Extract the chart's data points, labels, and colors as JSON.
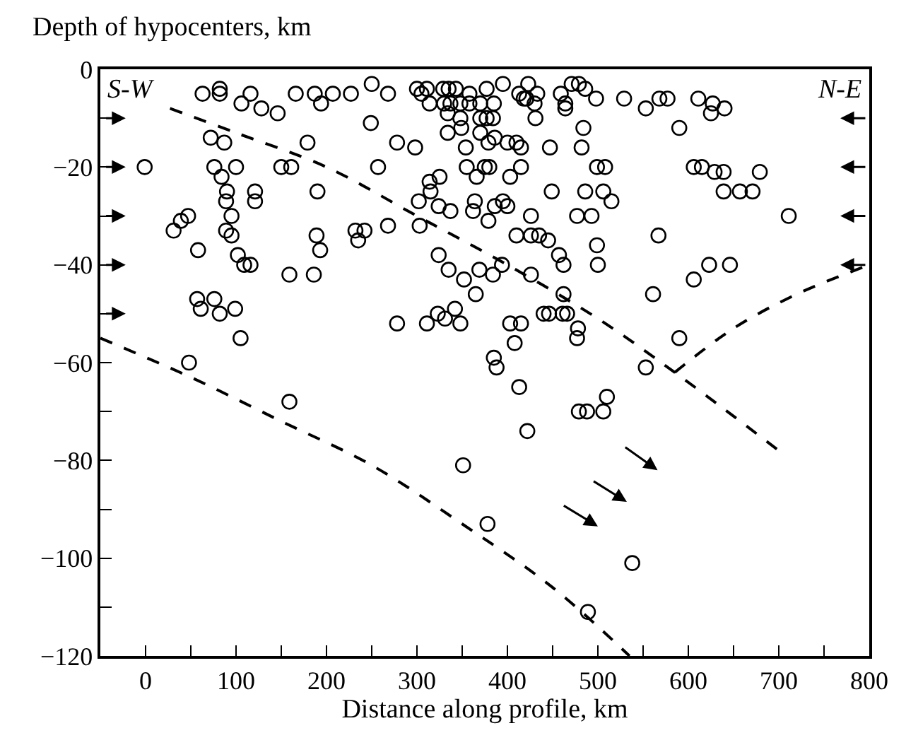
{
  "chart_data": {
    "type": "scatter",
    "xlabel": "Distance along profile, km",
    "ylabel": "Depth of hypocenters, km",
    "annotations": [
      "S-W",
      "N-E"
    ],
    "xlim": [
      -50,
      800
    ],
    "xticks": [
      {
        "value": -50,
        "label": null
      },
      0,
      {
        "value": 50,
        "label": null
      },
      100,
      {
        "value": 150,
        "label": null
      },
      200,
      {
        "value": 250,
        "label": null
      },
      300,
      {
        "value": 350,
        "label": null
      },
      400,
      {
        "value": 450,
        "label": null
      },
      500,
      {
        "value": 550,
        "label": null
      },
      600,
      {
        "value": 650,
        "label": null
      },
      700,
      {
        "value": 750,
        "label": null
      },
      800
    ],
    "ylim": [
      -120,
      0
    ],
    "yticks": [
      -120,
      {
        "value": -110,
        "label": null
      },
      -100,
      {
        "value": -90,
        "label": null
      },
      -80,
      {
        "value": -70,
        "label": null
      },
      -60,
      {
        "value": -50,
        "label": null
      },
      -40,
      {
        "value": -30,
        "label": null
      },
      -20,
      {
        "value": -10,
        "label": null
      },
      0
    ],
    "series": [
      {
        "color": "#000000",
        "marker": "circle",
        "x": [
          63,
          82,
          82,
          106,
          116,
          128,
          146,
          166,
          187,
          194,
          207,
          227,
          250,
          268,
          300,
          305,
          311,
          249,
          278,
          298,
          72,
          87,
          -1,
          76,
          84,
          100,
          150,
          161,
          179,
          257,
          190,
          90,
          121,
          121,
          89,
          47,
          39,
          31,
          95,
          89,
          95,
          58,
          102,
          109,
          116,
          159,
          186,
          189,
          193,
          232,
          242,
          235,
          268,
          302,
          303,
          57,
          61,
          76,
          82,
          99,
          105,
          278,
          311,
          48,
          159,
          329,
          335,
          343,
          358,
          377,
          395,
          413,
          423,
          433,
          459,
          471,
          479,
          486,
          498,
          529,
          553,
          568,
          577,
          611,
          627,
          625,
          640,
          314,
          330,
          337,
          348,
          358,
          370,
          385,
          418,
          421,
          430,
          464,
          464,
          334,
          348,
          370,
          377,
          384,
          431,
          484,
          590,
          334,
          349,
          370,
          379,
          386,
          400,
          410,
          415,
          354,
          447,
          482,
          355,
          366,
          375,
          380,
          415,
          403,
          499,
          508,
          606,
          615,
          629,
          639,
          679,
          325,
          314,
          315,
          449,
          486,
          506,
          515,
          639,
          657,
          671,
          324,
          337,
          364,
          362,
          386,
          395,
          400,
          379,
          426,
          477,
          493,
          711,
          410,
          426,
          435,
          445,
          457,
          462,
          499,
          500,
          567,
          324,
          335,
          352,
          365,
          369,
          384,
          394,
          426,
          462,
          561,
          606,
          623,
          646,
          323,
          331,
          342,
          348,
          403,
          415,
          440,
          446,
          461,
          466,
          478,
          477,
          408,
          590,
          385,
          388,
          553,
          413,
          510,
          479,
          488,
          506,
          422,
          351,
          378,
          538,
          489
        ],
        "values": [
          -5,
          -4,
          -5,
          -7,
          -5,
          -8,
          -9,
          -5,
          -5,
          -7,
          -5,
          -5,
          -3,
          -5,
          -4,
          -5,
          -4,
          -11,
          -15,
          -16,
          -14,
          -15,
          -20,
          -20,
          -22,
          -20,
          -20,
          -20,
          -15,
          -20,
          -25,
          -25,
          -25,
          -27,
          -27,
          -30,
          -31,
          -33,
          -30,
          -33,
          -34,
          -37,
          -38,
          -40,
          -40,
          -42,
          -42,
          -34,
          -37,
          -33,
          -33,
          -35,
          -32,
          -27,
          -32,
          -47,
          -49,
          -47,
          -50,
          -49,
          -55,
          -52,
          -52,
          -60,
          -68,
          -4,
          -4,
          -4,
          -5,
          -4,
          -3,
          -5,
          -3,
          -5,
          -5,
          -3,
          -3,
          -4,
          -6,
          -6,
          -8,
          -6,
          -6,
          -6,
          -7,
          -9,
          -8,
          -7,
          -7,
          -7,
          -7,
          -7,
          -7,
          -7,
          -6,
          -6,
          -7,
          -7,
          -8,
          -9,
          -10,
          -10,
          -10,
          -10,
          -10,
          -12,
          -12,
          -13,
          -12,
          -13,
          -15,
          -14,
          -15,
          -15,
          -16,
          -16,
          -16,
          -16,
          -20,
          -22,
          -20,
          -20,
          -20,
          -22,
          -20,
          -20,
          -20,
          -20,
          -21,
          -21,
          -21,
          -22,
          -23,
          -25,
          -25,
          -25,
          -25,
          -27,
          -25,
          -25,
          -25,
          -28,
          -29,
          -27,
          -29,
          -28,
          -27,
          -28,
          -31,
          -30,
          -30,
          -30,
          -30,
          -34,
          -34,
          -34,
          -35,
          -38,
          -40,
          -36,
          -40,
          -34,
          -38,
          -41,
          -43,
          -46,
          -41,
          -42,
          -40,
          -42,
          -46,
          -46,
          -43,
          -40,
          -40,
          -50,
          -51,
          -49,
          -52,
          -52,
          -52,
          -50,
          -50,
          -50,
          -50,
          -53,
          -55,
          -56,
          -55,
          -59,
          -61,
          -61,
          -65,
          -67,
          -70,
          -70,
          -70,
          -74,
          -81,
          -93,
          -101,
          -111
        ]
      },
      {
        "type": "line",
        "color": "#000000",
        "marker": "none",
        "line_style": "dashed",
        "x": [
          27,
          100,
          200,
          300,
          400,
          500,
          585,
          700
        ],
        "values": [
          -8,
          -13,
          -20,
          -30,
          -40,
          -51,
          -62,
          -78
        ]
      },
      {
        "type": "line",
        "color": "#000000",
        "marker": "none",
        "line_style": "dashed",
        "x": [
          585,
          650,
          720,
          800
        ],
        "values": [
          -62,
          -53,
          -46,
          -40
        ]
      },
      {
        "type": "line",
        "color": "#000000",
        "marker": "none",
        "line_style": "dashed",
        "x": [
          -50,
          50,
          150,
          250,
          350,
          450,
          535
        ],
        "values": [
          -55,
          -63,
          -72,
          -81,
          -93,
          -106,
          -120
        ]
      }
    ]
  }
}
